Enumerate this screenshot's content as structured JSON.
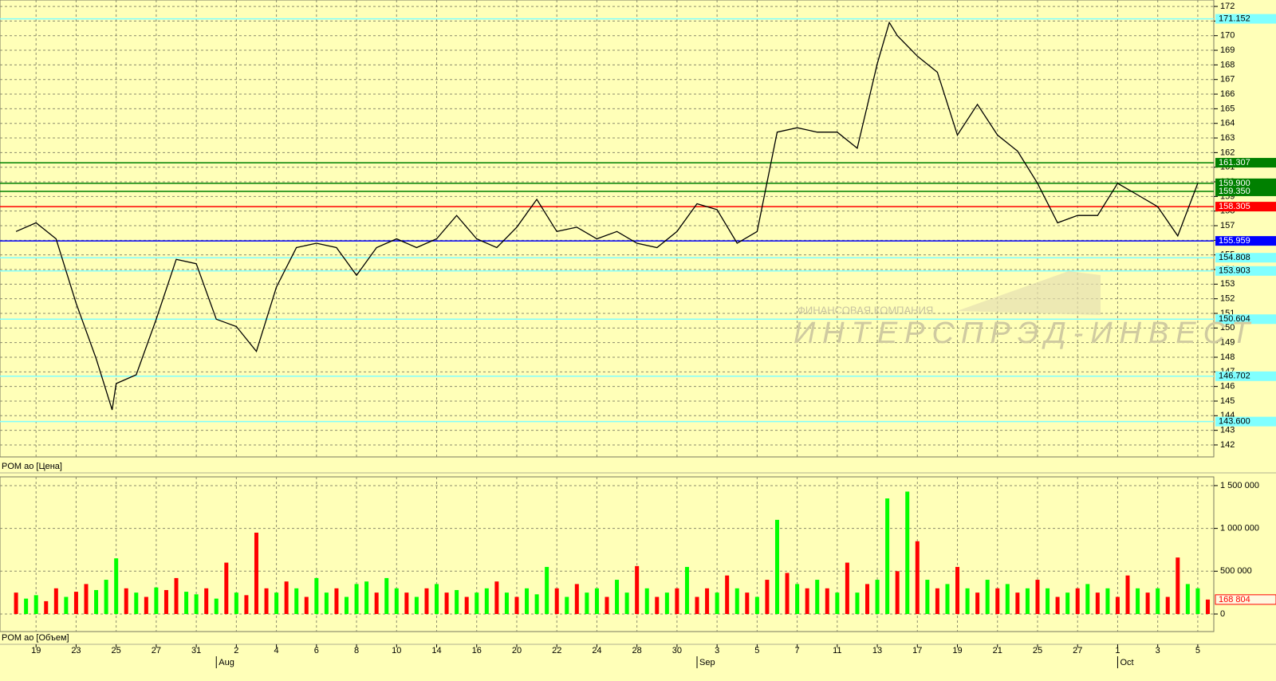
{
  "chart_data": [
    {
      "type": "line",
      "title": "POM ao [Цена]",
      "annotations": [
        "ФИНАНСОВАЯ КОМПАНИЯ",
        "ИНТЕРСПРЭД-ИНВЕСТ"
      ],
      "xlim": [
        -0.8,
        59.8
      ],
      "ylim": [
        141.18,
        172.44
      ],
      "yticks": [
        142,
        143,
        144,
        145,
        146,
        147,
        148,
        149,
        150,
        151,
        152,
        153,
        154,
        155,
        156,
        157,
        158,
        159,
        160,
        161,
        162,
        163,
        164,
        165,
        166,
        167,
        168,
        169,
        170,
        171,
        172
      ],
      "grid": true,
      "color": "#000000",
      "x": [
        0,
        1,
        2,
        3,
        4,
        4.8,
        5,
        6,
        7,
        8,
        9,
        10,
        11,
        12,
        13,
        14,
        15,
        16,
        17,
        18,
        19,
        20,
        21,
        22,
        23,
        24,
        25,
        26,
        27,
        28,
        29,
        30,
        31,
        32,
        33,
        34,
        35,
        36,
        37,
        38,
        39,
        40,
        41,
        42,
        43,
        43.6,
        44,
        45,
        46,
        47,
        48,
        49,
        50,
        51,
        52,
        53,
        54,
        55,
        56,
        57,
        58,
        59
      ],
      "values": [
        156.6,
        157.2,
        156.1,
        151.7,
        147.9,
        144.4,
        146.2,
        146.8,
        150.6,
        154.7,
        154.4,
        150.6,
        150.1,
        148.4,
        152.8,
        155.5,
        155.8,
        155.5,
        153.6,
        155.5,
        156.1,
        155.5,
        156.1,
        157.7,
        156.1,
        155.5,
        156.9,
        158.8,
        156.6,
        156.9,
        156.1,
        156.6,
        155.8,
        155.5,
        156.6,
        158.5,
        158.1,
        155.8,
        156.6,
        163.4,
        163.7,
        163.4,
        163.4,
        162.3,
        168.1,
        170.9,
        170.0,
        168.6,
        167.5,
        163.2,
        165.3,
        163.2,
        162.1,
        159.9,
        157.2,
        157.7,
        157.7,
        159.9,
        159.1,
        158.3,
        156.3,
        159.9
      ],
      "levels": [
        {
          "value": 171.152,
          "label": "171.152",
          "color": "#80ffff"
        },
        {
          "value": 161.307,
          "label": "161.307",
          "color": "#008000"
        },
        {
          "value": 159.9,
          "label": "159.900",
          "color": "#008000"
        },
        {
          "value": 159.35,
          "label": "159.350",
          "color": "#008000"
        },
        {
          "value": 158.305,
          "label": "158.305",
          "color": "#ff0000"
        },
        {
          "value": 155.959,
          "label": "155.959",
          "color": "#0000ff"
        },
        {
          "value": 154.808,
          "label": "154.808",
          "color": "#80ffff"
        },
        {
          "value": 153.903,
          "label": "153.903",
          "color": "#80ffff"
        },
        {
          "value": 150.604,
          "label": "150.604",
          "color": "#80ffff"
        },
        {
          "value": 146.702,
          "label": "146.702",
          "color": "#80ffff"
        },
        {
          "value": 143.6,
          "label": "143.600",
          "color": "#80ffff"
        }
      ]
    },
    {
      "type": "bar",
      "title": "POM ao [Объем]",
      "xlim": [
        -0.8,
        59.8
      ],
      "ylim": [
        -205000,
        1602000
      ],
      "yticks": [
        0,
        {
          "value": 500000,
          "label": "500 000"
        },
        {
          "value": 1000000,
          "label": "1 000 000"
        },
        {
          "value": 1500000,
          "label": "1 500 000"
        }
      ],
      "grid": true,
      "xticks": [
        {
          "value": 1,
          "label": "19"
        },
        {
          "value": 3,
          "label": "23"
        },
        {
          "value": 5,
          "label": "25"
        },
        {
          "value": 7,
          "label": "27"
        },
        {
          "value": 9,
          "label": "31"
        },
        {
          "value": 11,
          "label": "2"
        },
        {
          "value": 13,
          "label": "4"
        },
        {
          "value": 15,
          "label": "6"
        },
        {
          "value": 17,
          "label": "8"
        },
        {
          "value": 19,
          "label": "10"
        },
        {
          "value": 21,
          "label": "14"
        },
        {
          "value": 23,
          "label": "16"
        },
        {
          "value": 25,
          "label": "20"
        },
        {
          "value": 27,
          "label": "22"
        },
        {
          "value": 29,
          "label": "24"
        },
        {
          "value": 31,
          "label": "28"
        },
        {
          "value": 33,
          "label": "30"
        },
        {
          "value": 35,
          "label": "3"
        },
        {
          "value": 37,
          "label": "5"
        },
        {
          "value": 39,
          "label": "7"
        },
        {
          "value": 41,
          "label": "11"
        },
        {
          "value": 43,
          "label": "13"
        },
        {
          "value": 45,
          "label": "17"
        },
        {
          "value": 47,
          "label": "19"
        },
        {
          "value": 49,
          "label": "21"
        },
        {
          "value": 51,
          "label": "25"
        },
        {
          "value": 53,
          "label": "27"
        },
        {
          "value": 55,
          "label": "1"
        },
        {
          "value": 57,
          "label": "3"
        },
        {
          "value": 59,
          "label": "5"
        }
      ],
      "month_ticks": [
        {
          "value": 10,
          "label": "Aug"
        },
        {
          "value": 34,
          "label": "Sep"
        },
        {
          "value": 55,
          "label": "Oct"
        }
      ],
      "current": {
        "value": 168804,
        "label": "168 804",
        "color": "#ff0000"
      },
      "series": [
        {
          "color": "#00ff00",
          "x": [
            0.5,
            1,
            2.5,
            4,
            4.5,
            5,
            6,
            7,
            8.5,
            9,
            10,
            11,
            13,
            14,
            15,
            15.5,
            16.5,
            17,
            17.5,
            18.5,
            19,
            20,
            21,
            22,
            23,
            23.5,
            24.5,
            25.5,
            26,
            26.5,
            27.5,
            28.5,
            29,
            30,
            30.5,
            31.5,
            32.5,
            33.5,
            35,
            36,
            37,
            38,
            39,
            40,
            41,
            42,
            43,
            43.5,
            44.5,
            45.5,
            46.5,
            47.5,
            48.5,
            49.5,
            50.5,
            51.5,
            52.5,
            53.5,
            54.5,
            56,
            57,
            58.5,
            59
          ],
          "values": [
            180000,
            220000,
            200000,
            280000,
            400000,
            650000,
            250000,
            310000,
            260000,
            230000,
            180000,
            250000,
            250000,
            300000,
            420000,
            250000,
            200000,
            350000,
            380000,
            420000,
            300000,
            200000,
            350000,
            280000,
            250000,
            300000,
            250000,
            300000,
            230000,
            550000,
            200000,
            250000,
            300000,
            400000,
            250000,
            300000,
            250000,
            550000,
            250000,
            300000,
            200000,
            1100000,
            350000,
            400000,
            250000,
            250000,
            400000,
            1350000,
            1430000,
            400000,
            350000,
            300000,
            400000,
            350000,
            300000,
            300000,
            250000,
            350000,
            300000,
            300000,
            300000,
            350000,
            300000
          ]
        },
        {
          "color": "#ff0000",
          "x": [
            0,
            1.5,
            2,
            3,
            3.5,
            5.5,
            6.5,
            7.5,
            8,
            9.5,
            10.5,
            11.5,
            12,
            12.5,
            13.5,
            14.5,
            16,
            18,
            19.5,
            20.5,
            21.5,
            22.5,
            24,
            25,
            27,
            28,
            29.5,
            31,
            32,
            33,
            34,
            34.5,
            35.5,
            36.5,
            37.5,
            38.5,
            39.5,
            40.5,
            41.5,
            42.5,
            44,
            45,
            46,
            47,
            48,
            49,
            50,
            51,
            52,
            53,
            54,
            55,
            55.5,
            56.5,
            57.5,
            58,
            59.5
          ],
          "values": [
            250000,
            150000,
            300000,
            260000,
            350000,
            300000,
            200000,
            280000,
            420000,
            300000,
            600000,
            220000,
            950000,
            300000,
            380000,
            200000,
            300000,
            250000,
            250000,
            300000,
            250000,
            200000,
            380000,
            200000,
            300000,
            350000,
            200000,
            560000,
            200000,
            300000,
            200000,
            300000,
            450000,
            250000,
            400000,
            480000,
            300000,
            300000,
            600000,
            350000,
            500000,
            850000,
            300000,
            550000,
            250000,
            300000,
            250000,
            400000,
            200000,
            300000,
            250000,
            200000,
            450000,
            250000,
            200000,
            660000,
            168804
          ]
        }
      ]
    }
  ]
}
